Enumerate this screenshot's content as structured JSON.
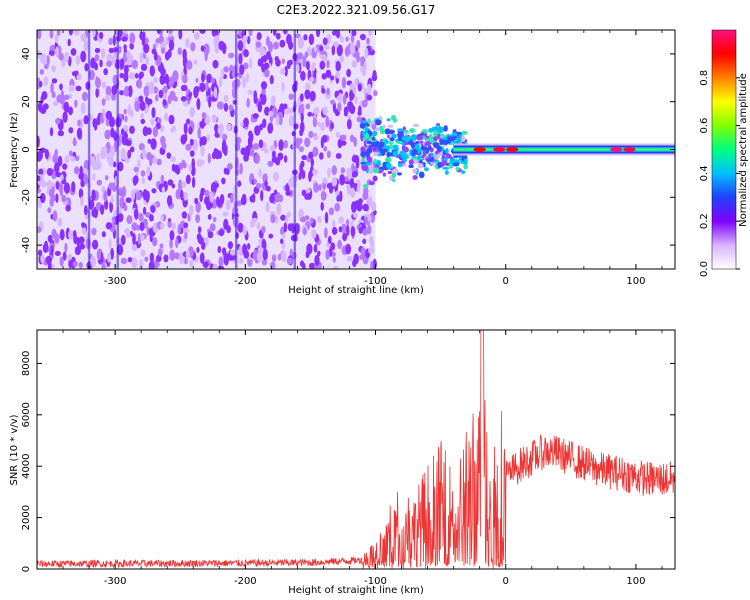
{
  "title": "C2E3.2022.321.09.56.G17",
  "chart_data": [
    {
      "type": "heatmap",
      "xlabel": "Height of straight line (km)",
      "ylabel": "Frequency (Hz)",
      "xlim": [
        -360,
        130
      ],
      "ylim": [
        -50,
        50
      ],
      "xticks": [
        -300,
        -200,
        -100,
        0,
        100
      ],
      "yticks": [
        -40,
        -20,
        0,
        20,
        40
      ],
      "colorbar": {
        "label": "Normalized spectral amplitude",
        "range": [
          0.0,
          1.0
        ],
        "ticks": [
          0.0,
          0.2,
          0.4,
          0.6,
          0.8
        ],
        "colors": [
          "#ffffff",
          "#d9b3ff",
          "#8000ff",
          "#2040ff",
          "#00c0ff",
          "#00ff80",
          "#80ff00",
          "#ffff00",
          "#ff8000",
          "#ff0000",
          "#ff1080"
        ]
      },
      "features": {
        "broadband_noise": {
          "x_range": [
            -360,
            -100
          ],
          "freq_range": [
            -50,
            50
          ],
          "amplitude": 0.15
        },
        "carrier_line": {
          "x_range": [
            -100,
            130
          ],
          "freq": 0,
          "amplitude_peak": 0.9
        }
      }
    },
    {
      "type": "line",
      "xlabel": "Height of straight line (km)",
      "ylabel": "SNR (10 * v/v)",
      "xlim": [
        -360,
        130
      ],
      "ylim": [
        0,
        9300
      ],
      "xticks": [
        -300,
        -200,
        -100,
        0,
        100
      ],
      "yticks": [
        0,
        2000,
        4000,
        6000,
        8000
      ],
      "series": [
        {
          "color": "#ee3333",
          "x": [
            -360,
            -300,
            -250,
            -200,
            -150,
            -110,
            -100,
            -90,
            -80,
            -70,
            -60,
            -50,
            -40,
            -30,
            -20,
            -15,
            -10,
            0,
            10,
            20,
            30,
            40,
            50,
            60,
            70,
            80,
            90,
            100,
            110,
            120,
            130
          ],
          "y": [
            200,
            210,
            220,
            230,
            250,
            350,
            600,
            1200,
            1800,
            1500,
            2200,
            2600,
            2000,
            3000,
            3400,
            4000,
            2800,
            3600,
            4000,
            4300,
            4600,
            4500,
            4300,
            4100,
            3900,
            3800,
            3700,
            3600,
            3500,
            3500,
            3500
          ]
        }
      ]
    }
  ]
}
